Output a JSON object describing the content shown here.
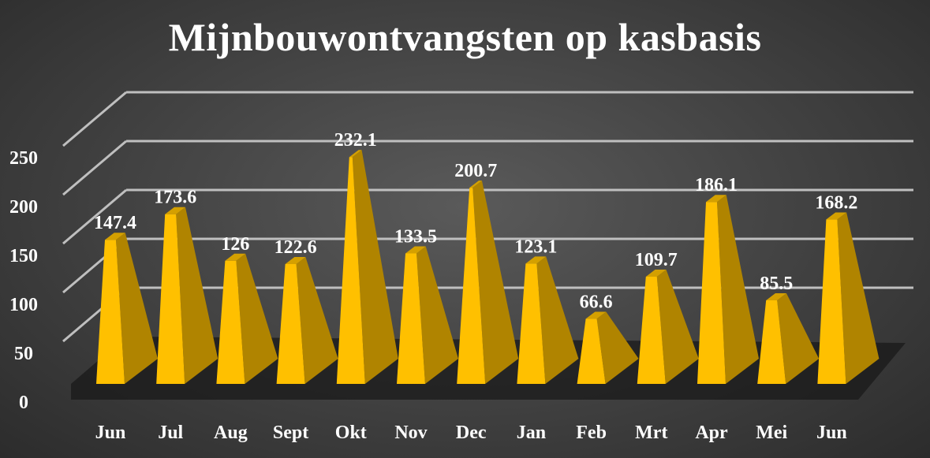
{
  "chart_data": {
    "type": "bar",
    "shape": "pyramid-3d",
    "title": "Mijnbouwontvangsten op kasbasis",
    "xlabel": "",
    "ylabel": "",
    "categories": [
      "Jun",
      "Jul",
      "Aug",
      "Sept",
      "Okt",
      "Nov",
      "Dec",
      "Jan",
      "Feb",
      "Mrt",
      "Apr",
      "Mei",
      "Jun"
    ],
    "values": [
      147.4,
      173.6,
      126,
      122.6,
      232.1,
      133.5,
      200.7,
      123.1,
      66.6,
      109.7,
      186.1,
      85.5,
      168.2
    ],
    "value_labels": [
      "147.4",
      "173.6",
      "126",
      "122.6",
      "232.1",
      "133.5",
      "200.7",
      "123.1",
      "66.6",
      "109.7",
      "186.1",
      "85.5",
      "168.2"
    ],
    "ylim": [
      0,
      250
    ],
    "yticks": [
      "0",
      "50",
      "100",
      "150",
      "200",
      "250"
    ],
    "grid": true,
    "legend": "none",
    "colors": {
      "bar_front": "#ffc000",
      "bar_side": "#b08400",
      "bar_top": "#d4a000",
      "gridline": "#bfbfbf",
      "floor": "#1a1a1a",
      "text": "#ffffff"
    }
  }
}
